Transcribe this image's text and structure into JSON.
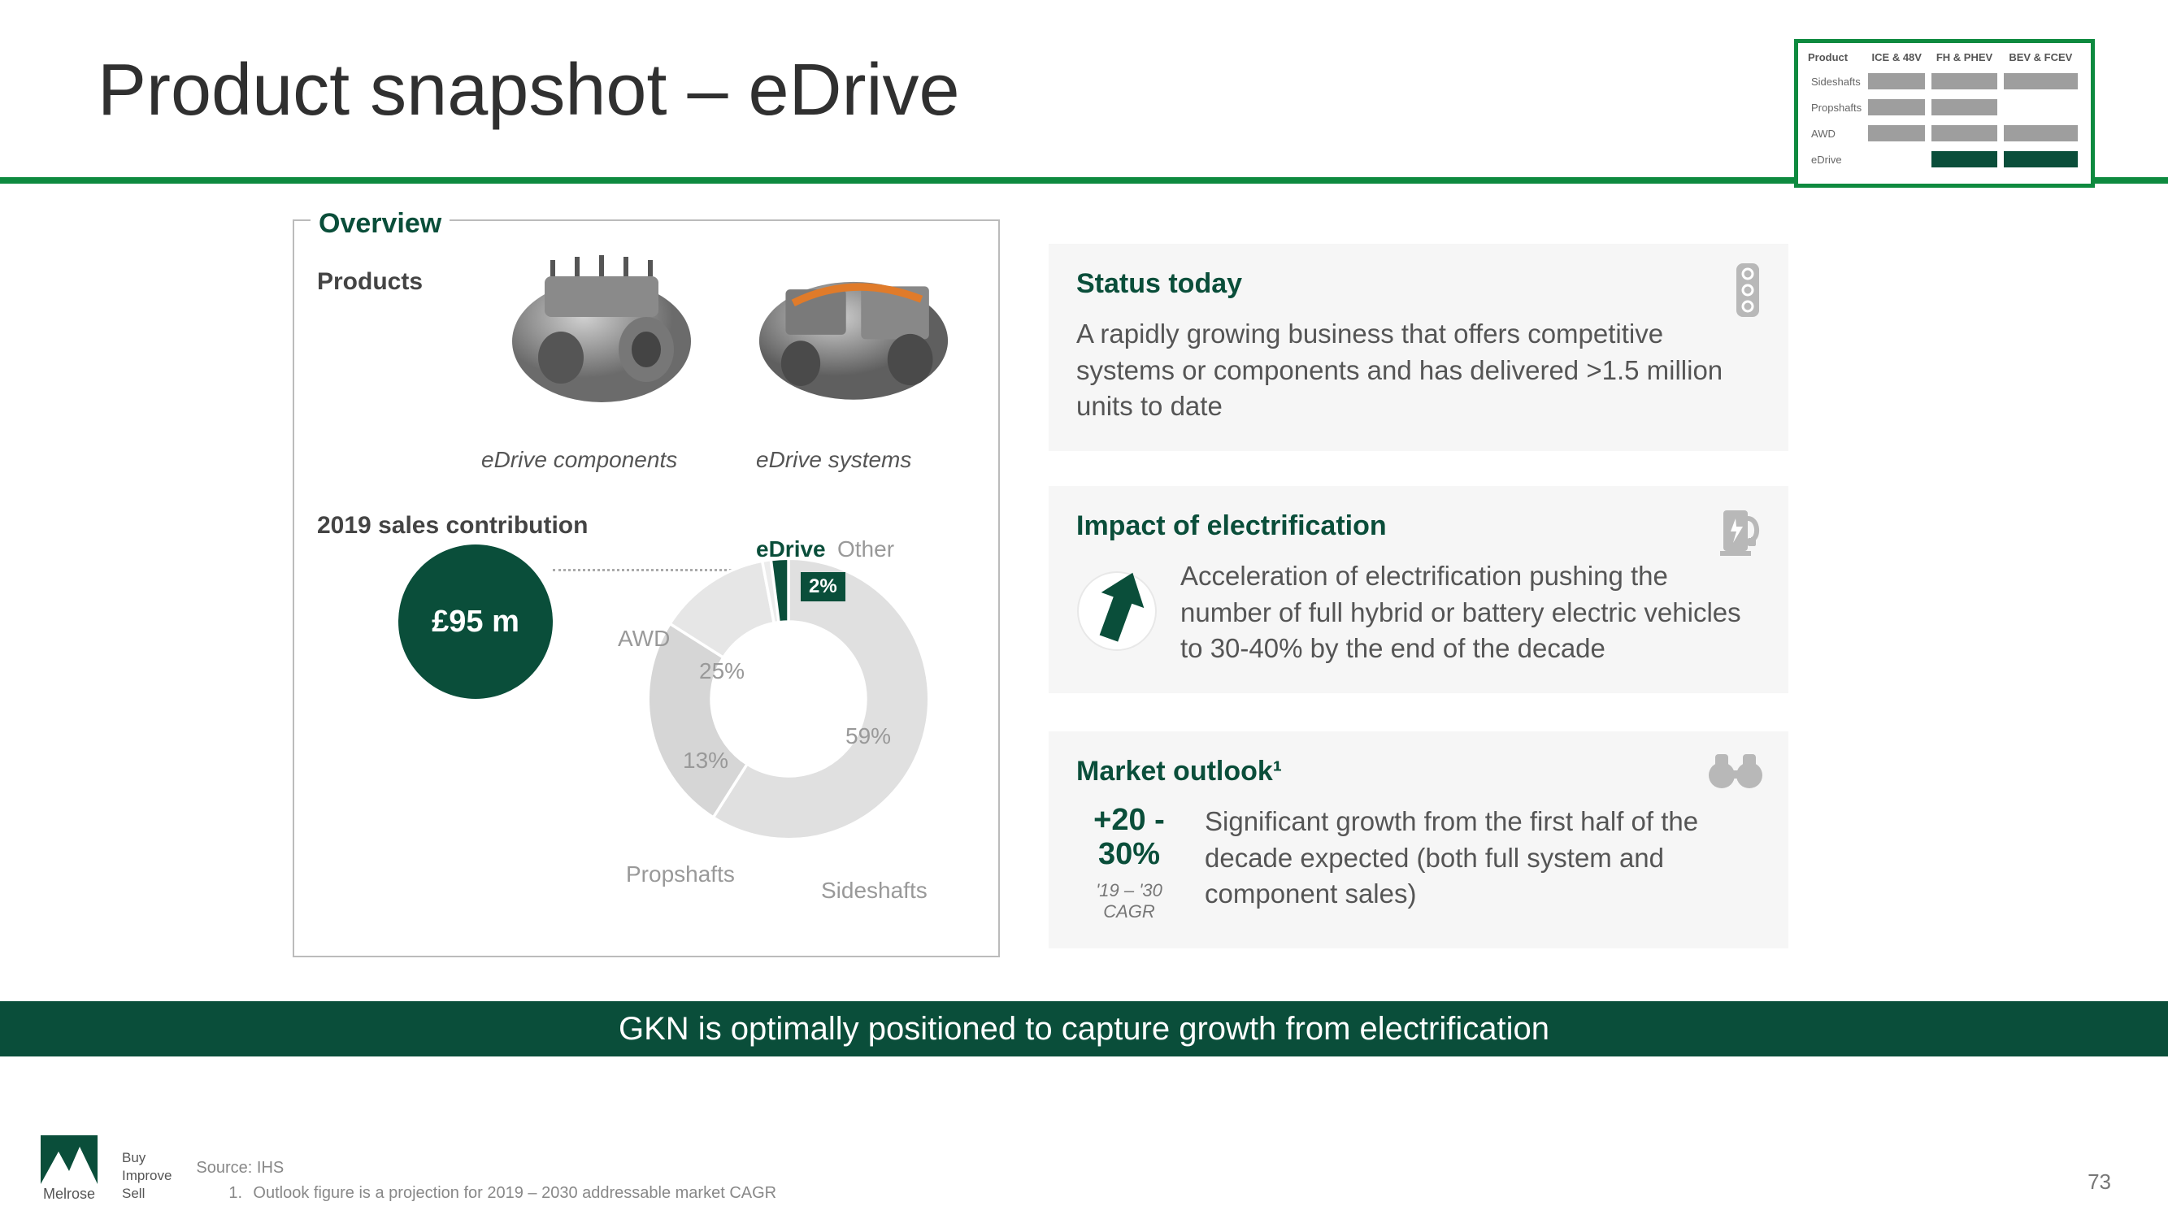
{
  "title": "Product snapshot – eDrive",
  "page_number": "73",
  "colors": {
    "brand_green": "#0e8a3f",
    "dark_green": "#0a4e3a",
    "grey_bg": "#f6f6f6",
    "grey_text": "#999",
    "body_text": "#555"
  },
  "mini_table": {
    "headers": [
      "Product",
      "ICE & 48V",
      "FH & PHEV",
      "BEV & FCEV"
    ],
    "rows": [
      {
        "label": "Sideshafts",
        "cells": [
          "#9e9e9e",
          "#9e9e9e",
          "#9e9e9e"
        ]
      },
      {
        "label": "Propshafts",
        "cells": [
          "#9e9e9e",
          "#9e9e9e",
          "#ffffff"
        ]
      },
      {
        "label": "AWD",
        "cells": [
          "#9e9e9e",
          "#9e9e9e",
          "#9e9e9e"
        ]
      },
      {
        "label": "eDrive",
        "cells": [
          "#ffffff",
          "#0a4e3a",
          "#0a4e3a"
        ]
      }
    ]
  },
  "overview": {
    "legend": "Overview",
    "products_label": "Products",
    "product_a_caption": "eDrive components",
    "product_b_caption": "eDrive systems",
    "sales_label": "2019 sales contribution",
    "sales_value": "£95 m",
    "donut": {
      "type": "donut",
      "series": [
        {
          "label": "Sideshafts",
          "value": 59,
          "color": "#e0e0e0"
        },
        {
          "label": "AWD",
          "value": 25,
          "color": "#d6d6d6"
        },
        {
          "label": "Propshafts",
          "value": 13,
          "color": "#e6e6e6"
        },
        {
          "label": "Other",
          "value": 1,
          "color": "#ececec"
        },
        {
          "label": "eDrive",
          "value": 2,
          "color": "#0a4e3a"
        }
      ],
      "inner_radius_pct": 55,
      "outer_radius_pct": 100,
      "highlight_label": "eDrive",
      "highlight_badge": "2%",
      "label_edrive": "eDrive",
      "label_other": "Other",
      "label_awd": "AWD",
      "label_25": "25%",
      "label_59": "59%",
      "label_13": "13%",
      "label_prop": "Propshafts",
      "label_side": "Sideshafts"
    }
  },
  "status": {
    "title": "Status today",
    "body": "A rapidly growing business that offers competitive systems or components and has delivered >1.5 million units to date"
  },
  "impact": {
    "title": "Impact of electrification",
    "body": "Acceleration of electrification pushing the number of full hybrid or battery electric vehicles to 30-40% by the end of the decade"
  },
  "market": {
    "title": "Market outlook¹",
    "metric": "+20 - 30%",
    "metric_sub": "'19 – '30 CAGR",
    "body": "Significant growth from the first half of the decade expected (both full system and component sales)"
  },
  "banner": "GKN is optimally positioned to capture growth from electrification",
  "footer": {
    "logo_name": "Melrose",
    "tagline_lines": [
      "Buy",
      "Improve",
      "Sell"
    ],
    "source": "Source: IHS",
    "footnote_num": "1.",
    "footnote": "Outlook figure is a projection for 2019 – 2030 addressable market CAGR"
  }
}
